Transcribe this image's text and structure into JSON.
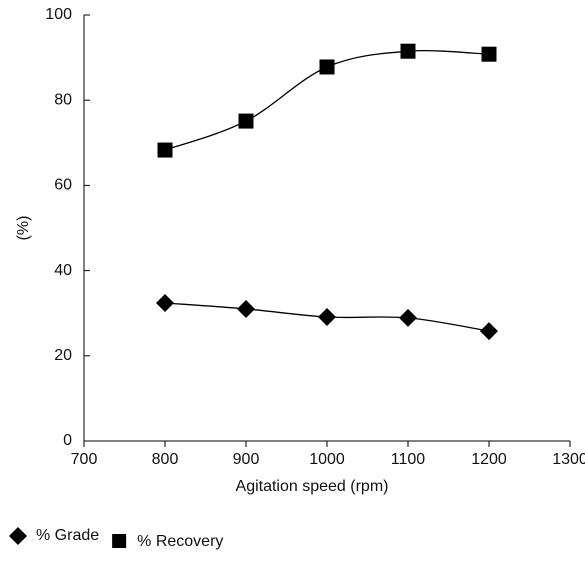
{
  "chart_data": {
    "type": "line",
    "smooth": true,
    "x_label": "Agitation speed (rpm)",
    "y_label": "(%)",
    "x": [
      800,
      900,
      1000,
      1100,
      1200
    ],
    "series": [
      {
        "name": "% Grade",
        "color": "#000000",
        "marker": "diamond",
        "values": [
          32.4,
          31,
          29.1,
          28.9,
          25.8
        ]
      },
      {
        "name": "% Recovery",
        "color": "#000000",
        "marker": "square",
        "values": [
          68.3,
          75.1,
          87.8,
          91.5,
          90.8
        ]
      }
    ],
    "xlim": [
      700,
      1300
    ],
    "xticks": [
      700,
      800,
      900,
      1000,
      1100,
      1200,
      1300
    ],
    "ylim": [
      0,
      100
    ],
    "yticks": [
      0,
      20,
      40,
      60,
      80,
      100
    ],
    "grid": false,
    "legend": "bottom-left"
  }
}
